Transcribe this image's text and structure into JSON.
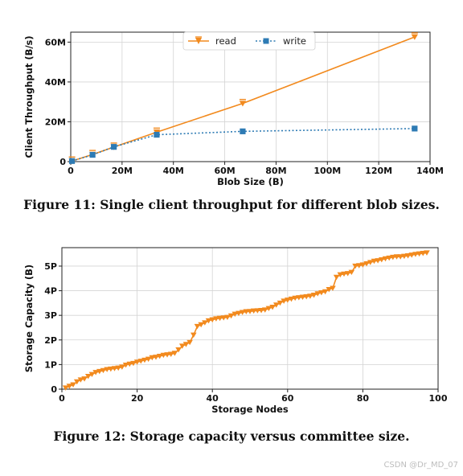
{
  "chart_data": [
    {
      "type": "line",
      "caption": "Figure 11: Single client throughput for different blob sizes.",
      "xlabel": "Blob Size (B)",
      "ylabel": "Client Throughput (B/s)",
      "xlim": [
        0,
        140
      ],
      "ylim": [
        0,
        65
      ],
      "xticks": [
        0,
        20,
        40,
        60,
        80,
        100,
        120,
        140
      ],
      "xtick_labels": [
        "0",
        "20M",
        "40M",
        "60M",
        "80M",
        "100M",
        "120M",
        "140M"
      ],
      "yticks": [
        0,
        20,
        40,
        60
      ],
      "ytick_labels": [
        "0",
        "20M",
        "40M",
        "60M"
      ],
      "grid": true,
      "legend_position": "top-center",
      "series": [
        {
          "name": "read",
          "color": "#f28a1e",
          "marker": "triangle-down-errorbar",
          "x": [
            0.5,
            8.5,
            16.8,
            33.5,
            67,
            134
          ],
          "y": [
            0.3,
            3.6,
            7.3,
            14.8,
            29.2,
            62.6
          ]
        },
        {
          "name": "write",
          "color": "#2e7bb4",
          "marker": "square",
          "x": [
            0.5,
            8.5,
            16.8,
            33.5,
            67,
            134
          ],
          "y": [
            0.3,
            3.4,
            7.4,
            13.5,
            15.2,
            16.6
          ]
        }
      ]
    },
    {
      "type": "line",
      "caption": "Figure 12: Storage capacity versus committee size.",
      "xlabel": "Storage Nodes",
      "ylabel": "Storage Capacity (B)",
      "xlim": [
        0,
        100
      ],
      "ylim": [
        0,
        5.75
      ],
      "xticks": [
        0,
        20,
        40,
        60,
        80,
        100
      ],
      "xtick_labels": [
        "0",
        "20",
        "40",
        "60",
        "80",
        "100"
      ],
      "yticks": [
        0,
        1,
        2,
        3,
        4,
        5
      ],
      "ytick_labels": [
        "0",
        "1P",
        "2P",
        "3P",
        "4P",
        "5P"
      ],
      "grid": true,
      "series": [
        {
          "color": "#f28a1e",
          "marker": "triangle-down",
          "x": [
            1,
            2,
            3,
            4,
            5,
            6,
            7,
            8,
            9,
            10,
            11,
            12,
            13,
            14,
            15,
            16,
            17,
            18,
            19,
            20,
            21,
            22,
            23,
            24,
            25,
            26,
            27,
            28,
            29,
            30,
            31,
            32,
            33,
            34,
            35,
            36,
            37,
            38,
            39,
            40,
            41,
            42,
            43,
            44,
            45,
            46,
            47,
            48,
            49,
            50,
            51,
            52,
            53,
            54,
            55,
            56,
            57,
            58,
            59,
            60,
            61,
            62,
            63,
            64,
            65,
            66,
            67,
            68,
            69,
            70,
            71,
            72,
            73,
            74,
            75,
            76,
            77,
            78,
            79,
            80,
            81,
            82,
            83,
            84,
            85,
            86,
            87,
            88,
            89,
            90,
            91,
            92,
            93,
            94,
            95,
            96,
            97
          ],
          "y": [
            0.05,
            0.12,
            0.18,
            0.3,
            0.38,
            0.42,
            0.52,
            0.6,
            0.68,
            0.72,
            0.76,
            0.8,
            0.82,
            0.84,
            0.86,
            0.9,
            0.98,
            1.02,
            1.05,
            1.1,
            1.14,
            1.18,
            1.22,
            1.28,
            1.3,
            1.34,
            1.38,
            1.4,
            1.42,
            1.46,
            1.6,
            1.75,
            1.82,
            1.9,
            2.2,
            2.55,
            2.62,
            2.7,
            2.78,
            2.82,
            2.86,
            2.88,
            2.9,
            2.92,
            2.98,
            3.05,
            3.08,
            3.12,
            3.15,
            3.16,
            3.18,
            3.19,
            3.2,
            3.22,
            3.28,
            3.33,
            3.42,
            3.5,
            3.58,
            3.62,
            3.66,
            3.7,
            3.72,
            3.74,
            3.76,
            3.78,
            3.82,
            3.88,
            3.92,
            3.96,
            4.05,
            4.1,
            4.55,
            4.65,
            4.68,
            4.7,
            4.75,
            5.0,
            5.02,
            5.05,
            5.1,
            5.15,
            5.2,
            5.22,
            5.26,
            5.3,
            5.33,
            5.36,
            5.38,
            5.38,
            5.4,
            5.42,
            5.45,
            5.48,
            5.5,
            5.52,
            5.54
          ]
        }
      ]
    }
  ],
  "watermark": "CSDN @Dr_MD_07"
}
